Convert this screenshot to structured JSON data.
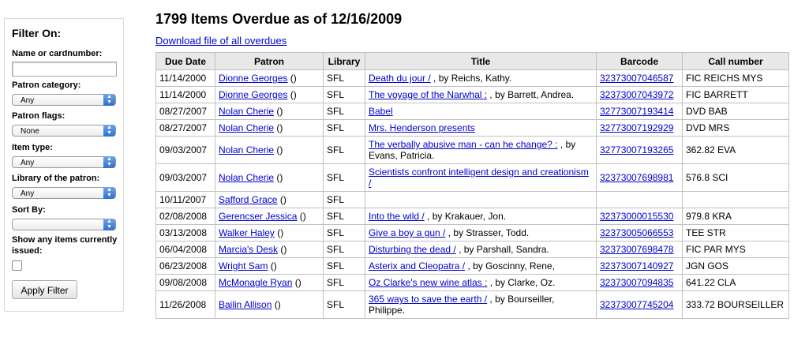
{
  "filter": {
    "heading": "Filter On:",
    "name_label": "Name or cardnumber:",
    "name_value": "",
    "patron_category_label": "Patron category:",
    "patron_category_value": "Any",
    "patron_flags_label": "Patron flags:",
    "patron_flags_value": "None",
    "item_type_label": "Item type:",
    "item_type_value": "Any",
    "library_label": "Library of the patron:",
    "library_value": "Any",
    "sort_label": "Sort By:",
    "sort_value": "",
    "show_issued_label": "Show any items currently issued:",
    "apply_label": "Apply Filter"
  },
  "main": {
    "title": "1799 Items Overdue as of 12/16/2009",
    "download_label": "Download file of all overdues",
    "columns": [
      "Due Date",
      "Patron",
      "Library",
      "Title",
      "Barcode",
      "Call number"
    ],
    "rows": [
      {
        "due": "11/14/2000",
        "patron": "Dionne Georges",
        "paren": " ()",
        "library": "SFL",
        "title": "Death du jour /",
        "by": " , by Reichs, Kathy.",
        "barcode": "32373007046587",
        "call": "FIC REICHS MYS"
      },
      {
        "due": "11/14/2000",
        "patron": "Dionne Georges",
        "paren": " ()",
        "library": "SFL",
        "title": "The voyage of the Narwhal :",
        "by": " , by Barrett, Andrea.",
        "barcode": "32373007043972",
        "call": "FIC BARRETT"
      },
      {
        "due": "08/27/2007",
        "patron": "Nolan Cherie",
        "paren": " ()",
        "library": "SFL",
        "title": "Babel",
        "by": "",
        "barcode": "32773007193414",
        "call": "DVD BAB"
      },
      {
        "due": "08/27/2007",
        "patron": "Nolan Cherie",
        "paren": " ()",
        "library": "SFL",
        "title": "Mrs. Henderson presents",
        "by": "",
        "barcode": "32773007192929",
        "call": "DVD MRS"
      },
      {
        "due": "09/03/2007",
        "patron": "Nolan Cherie",
        "paren": " ()",
        "library": "SFL",
        "title": "The verbally abusive man - can he change? :",
        "by": " , by Evans, Patricia.",
        "barcode": "32773007193265",
        "call": "362.82 EVA"
      },
      {
        "due": "09/03/2007",
        "patron": "Nolan Cherie",
        "paren": " ()",
        "library": "SFL",
        "title": "Scientists confront intelligent design and creationism /",
        "by": "",
        "barcode": "32373007698981",
        "call": "576.8 SCI"
      },
      {
        "due": "10/11/2007",
        "patron": "Safford Grace",
        "paren": " ()",
        "library": "SFL",
        "title": "",
        "by": "",
        "barcode": "",
        "call": ""
      },
      {
        "due": "02/08/2008",
        "patron": "Gerencser Jessica",
        "paren": " ()",
        "library": "SFL",
        "title": "Into the wild /",
        "by": " , by Krakauer, Jon.",
        "barcode": "32373000015530",
        "call": "979.8 KRA"
      },
      {
        "due": "03/13/2008",
        "patron": "Walker Haley",
        "paren": " ()",
        "library": "SFL",
        "title": "Give a boy a gun /",
        "by": " , by Strasser, Todd.",
        "barcode": "32373005066553",
        "call": "TEE STR"
      },
      {
        "due": "06/04/2008",
        "patron": "Marcia's Desk",
        "paren": " ()",
        "library": "SFL",
        "title": "Disturbing the dead /",
        "by": " , by Parshall, Sandra.",
        "barcode": "32373007698478",
        "call": "FIC PAR MYS"
      },
      {
        "due": "06/23/2008",
        "patron": "Wright Sam",
        "paren": " ()",
        "library": "SFL",
        "title": "Asterix and Cleopatra /",
        "by": " , by Goscinny, Rene,",
        "barcode": "32373007140927",
        "call": "JGN GOS"
      },
      {
        "due": "09/08/2008",
        "patron": "McMonagle Ryan",
        "paren": " ()",
        "library": "SFL",
        "title": "Oz Clarke's new wine atlas :",
        "by": " , by Clarke, Oz.",
        "barcode": "32373007094835",
        "call": "641.22 CLA"
      },
      {
        "due": "11/26/2008",
        "patron": "Bailin Allison",
        "paren": " ()",
        "library": "SFL",
        "title": "365 ways to save the earth /",
        "by": " , by Bourseiller, Philippe.",
        "barcode": "32373007745204",
        "call": "333.72 BOURSEILLER"
      }
    ]
  }
}
